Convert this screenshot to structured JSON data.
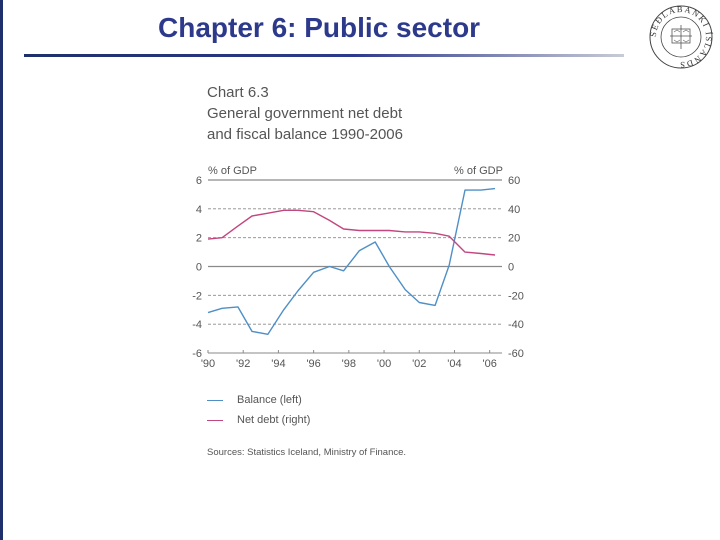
{
  "slide": {
    "title": "Chapter 6: Public sector"
  },
  "colors": {
    "accent": "#2d3a8c",
    "balance": "#4f8fc6",
    "net_debt": "#c2477f",
    "text": "#555555",
    "grid": "#8a8a8a"
  },
  "seal": {
    "text": "SEÐLABANKI ÍSLANDS"
  },
  "chart_data": {
    "type": "line",
    "chart_number": "Chart 6.3",
    "title_line1": "General government net debt",
    "title_line2": "and fiscal balance 1990-2006",
    "left_unit": "% of GDP",
    "right_unit": "% of GDP",
    "ylim_left": [
      -6,
      6
    ],
    "ylim_right": [
      -60,
      60
    ],
    "left_ticks": [
      "6",
      "4",
      "2",
      "0",
      "-2",
      "-4",
      "-6"
    ],
    "right_ticks": [
      "60",
      "40",
      "20",
      "0",
      "-20",
      "-40",
      "-60"
    ],
    "x_tick_labels": [
      "'90",
      "'92",
      "'94",
      "'96",
      "'98",
      "'00",
      "'02",
      "'04",
      "'06"
    ],
    "x_tick_years": [
      1990,
      1992,
      1994,
      1996,
      1998,
      2000,
      2002,
      2004,
      2006
    ],
    "xlim": [
      1990,
      2006.7
    ],
    "series": [
      {
        "name": "Balance (left)",
        "axis": "left",
        "x": [
          1990,
          1990.8,
          1991.7,
          1992.5,
          1993.4,
          1994.3,
          1995.1,
          1996.0,
          1996.9,
          1997.7,
          1998.6,
          1999.5,
          2000.3,
          2001.2,
          2002.0,
          2002.9,
          2003.7,
          2004.6,
          2005.5,
          2006.3
        ],
        "y": [
          -3.2,
          -2.9,
          -2.8,
          -4.5,
          -4.7,
          -3.0,
          -1.7,
          -0.4,
          0.0,
          -0.3,
          1.1,
          1.7,
          0.0,
          -1.6,
          -2.5,
          -2.7,
          0.1,
          5.3,
          5.3,
          5.4
        ]
      },
      {
        "name": "Net debt (right)",
        "axis": "right",
        "x": [
          1990,
          1990.8,
          1991.7,
          1992.5,
          1993.4,
          1994.3,
          1995.1,
          1996.0,
          1996.9,
          1997.7,
          1998.6,
          1999.5,
          2000.3,
          2001.2,
          2002.0,
          2002.9,
          2003.7,
          2004.6,
          2005.5,
          2006.3
        ],
        "y": [
          19,
          20,
          28,
          35,
          37,
          39,
          39,
          38,
          32,
          26,
          25,
          25,
          25,
          24,
          24,
          23,
          21,
          10,
          9,
          8
        ]
      }
    ],
    "legend": [
      "Balance (left)",
      "Net debt (right)"
    ],
    "source": "Sources: Statistics Iceland, Ministry of Finance."
  }
}
